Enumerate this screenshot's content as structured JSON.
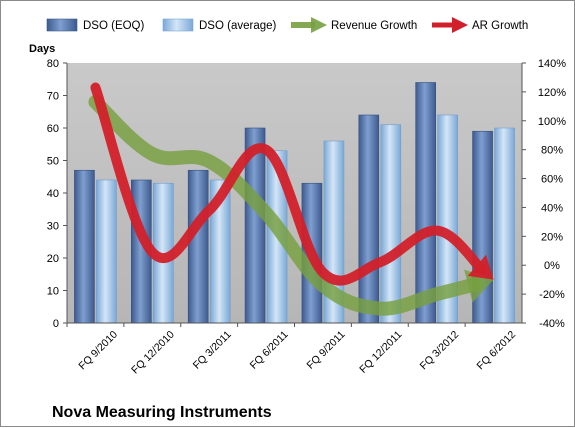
{
  "chart_data": {
    "type": "bar",
    "title": "Nova Measuring Instruments",
    "ylabel": "Days",
    "ylim": [
      0,
      80
    ],
    "y_ticks": [
      "0",
      "10",
      "20",
      "30",
      "40",
      "50",
      "60",
      "70",
      "80"
    ],
    "y2lim": [
      -40,
      140
    ],
    "y2_ticks": [
      "-40%",
      "-20%",
      "0%",
      "20%",
      "40%",
      "60%",
      "80%",
      "100%",
      "120%",
      "140%"
    ],
    "categories": [
      "FQ 9/2010",
      "FQ 12/2010",
      "FQ 3/2011",
      "FQ 6/2011",
      "FQ 9/2011",
      "FQ 12/2011",
      "FQ 3/2012",
      "FQ 6/2012"
    ],
    "legend_position": "top",
    "grid": false,
    "series": [
      {
        "name": "DSO (EOQ)",
        "kind": "bar",
        "axis": "left",
        "color": "#4f6fa8",
        "values": [
          47,
          44,
          47,
          60,
          43,
          64,
          74,
          59
        ]
      },
      {
        "name": "DSO (average)",
        "kind": "bar",
        "axis": "left",
        "color": "#9dc3e6",
        "values": [
          44,
          43,
          44,
          53,
          56,
          61,
          64,
          60
        ]
      },
      {
        "name": "Revenue Growth",
        "kind": "line",
        "axis": "right",
        "color": "#77a040",
        "values": [
          113,
          77,
          72,
          36,
          -14,
          -30,
          -20,
          -10
        ]
      },
      {
        "name": "AR Growth",
        "kind": "line",
        "axis": "right",
        "color": "#d2202a",
        "values": [
          123,
          9,
          38,
          80,
          -5,
          2,
          24,
          -10
        ]
      }
    ]
  }
}
